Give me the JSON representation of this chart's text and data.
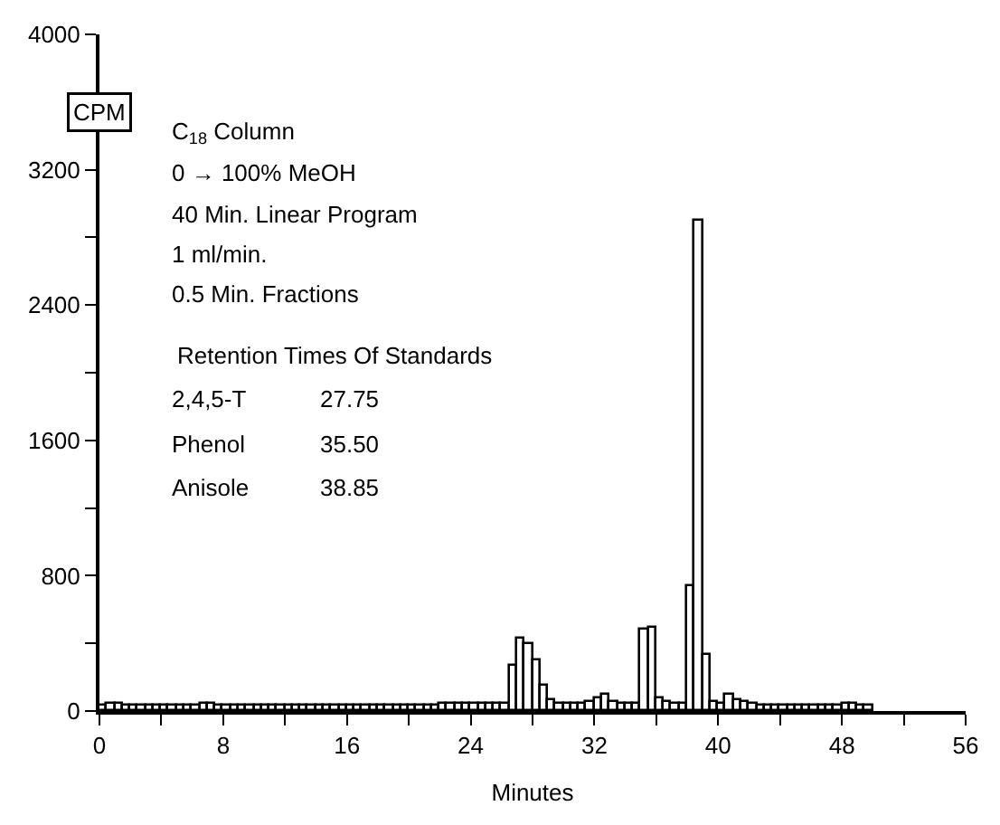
{
  "chart_data": {
    "type": "histogram",
    "xlabel": "Minutes",
    "ylabel": "CPM",
    "bins": [
      0,
      0.5,
      1,
      1.5,
      2,
      2.5,
      3,
      3.5,
      4,
      4.5,
      5,
      5.5,
      6,
      6.5,
      7,
      7.5,
      8,
      8.5,
      9,
      9.5,
      10,
      10.5,
      11,
      11.5,
      12,
      12.5,
      13,
      13.5,
      14,
      14.5,
      15,
      15.5,
      16,
      16.5,
      17,
      17.5,
      18,
      18.5,
      19,
      19.5,
      20,
      20.5,
      21,
      21.5,
      22,
      22.5,
      23,
      23.5,
      24,
      24.5,
      25,
      25.5,
      26,
      26.5,
      27,
      27.5,
      28,
      28.5,
      29,
      29.5,
      30,
      30.5,
      31,
      31.5,
      32,
      32.5,
      33,
      33.5,
      34,
      34.5,
      35,
      35.5,
      36,
      36.5,
      37,
      37.5,
      38,
      38.5,
      39,
      39.5,
      40,
      40.5,
      41,
      41.5,
      42,
      42.5,
      43,
      43.5,
      44,
      44.5,
      45,
      45.5,
      46,
      46.5,
      47,
      47.5,
      48,
      48.5,
      49,
      49.5,
      50
    ],
    "values": [
      30,
      40,
      40,
      30,
      30,
      30,
      30,
      30,
      30,
      30,
      30,
      30,
      30,
      40,
      40,
      30,
      30,
      30,
      30,
      30,
      30,
      30,
      30,
      30,
      30,
      30,
      30,
      30,
      30,
      30,
      30,
      30,
      30,
      30,
      30,
      30,
      30,
      30,
      30,
      30,
      30,
      30,
      30,
      30,
      40,
      40,
      40,
      40,
      40,
      40,
      40,
      40,
      40,
      270,
      430,
      400,
      300,
      150,
      60,
      40,
      40,
      40,
      40,
      50,
      80,
      100,
      50,
      40,
      40,
      40,
      480,
      490,
      70,
      50,
      40,
      40,
      740,
      2900,
      330,
      50,
      40,
      100,
      60,
      50,
      40,
      30,
      30,
      30,
      30,
      30,
      30,
      30,
      30,
      30,
      30,
      30,
      40,
      40,
      30,
      30
    ],
    "color": "#000000",
    "xlim": [
      0,
      56
    ],
    "xticks": [
      0,
      {
        "value": 4,
        "label": null
      },
      8,
      {
        "value": 12,
        "label": null
      },
      16,
      {
        "value": 20,
        "label": null
      },
      24,
      {
        "value": 28,
        "label": null
      },
      32,
      {
        "value": 36,
        "label": null
      },
      40,
      {
        "value": 44,
        "label": null
      },
      48,
      {
        "value": 52,
        "label": null
      },
      56
    ],
    "ylim": [
      0,
      4000
    ],
    "yticks": [
      0,
      {
        "value": 400,
        "label": null
      },
      800,
      {
        "value": 1200,
        "label": null
      },
      1600,
      {
        "value": 2000,
        "label": null
      },
      2400,
      {
        "value": 2800,
        "label": null
      },
      3200,
      {
        "value": 3600,
        "label": null
      },
      4000
    ],
    "annotations": [
      "C$_{18}$ Column",
      "0 → 100% MeOH",
      "40 Min. Linear Program",
      "1 ml/min.",
      "0.5 Min. Fractions",
      "Retention Times Of Standards",
      "2,4,5-T",
      "27.75",
      "Phenol",
      "35.50",
      "Anisole",
      "38.85"
    ]
  }
}
